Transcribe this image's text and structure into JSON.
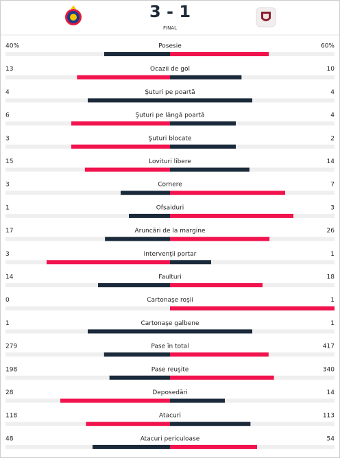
{
  "header": {
    "score": "3 - 1",
    "status": "FINAL"
  },
  "stats": [
    {
      "label": "Posesie",
      "home": 40,
      "away": 60,
      "home_label": "40%",
      "away_label": "60%"
    },
    {
      "label": "Ocazii de gol",
      "home": 13,
      "away": 10
    },
    {
      "label": "Şuturi pe poartă",
      "home": 4,
      "away": 4
    },
    {
      "label": "Şuturi pe lângă poartă",
      "home": 6,
      "away": 4
    },
    {
      "label": "Şuturi blocate",
      "home": 3,
      "away": 2
    },
    {
      "label": "Lovituri libere",
      "home": 15,
      "away": 14
    },
    {
      "label": "Cornere",
      "home": 3,
      "away": 7
    },
    {
      "label": "Ofsaiduri",
      "home": 1,
      "away": 3
    },
    {
      "label": "Aruncări de la margine",
      "home": 17,
      "away": 26
    },
    {
      "label": "Intervenţii portar",
      "home": 3,
      "away": 1
    },
    {
      "label": "Faulturi",
      "home": 14,
      "away": 18
    },
    {
      "label": "Cartonaşe roşii",
      "home": 0,
      "away": 1
    },
    {
      "label": "Cartonaşe galbene",
      "home": 1,
      "away": 1
    },
    {
      "label": "Pase în total",
      "home": 279,
      "away": 417
    },
    {
      "label": "Pase reuşite",
      "home": 198,
      "away": 340
    },
    {
      "label": "Deposedări",
      "home": 28,
      "away": 14
    },
    {
      "label": "Atacuri",
      "home": 118,
      "away": 113
    },
    {
      "label": "Atacuri periculoase",
      "home": 48,
      "away": 54
    }
  ]
}
